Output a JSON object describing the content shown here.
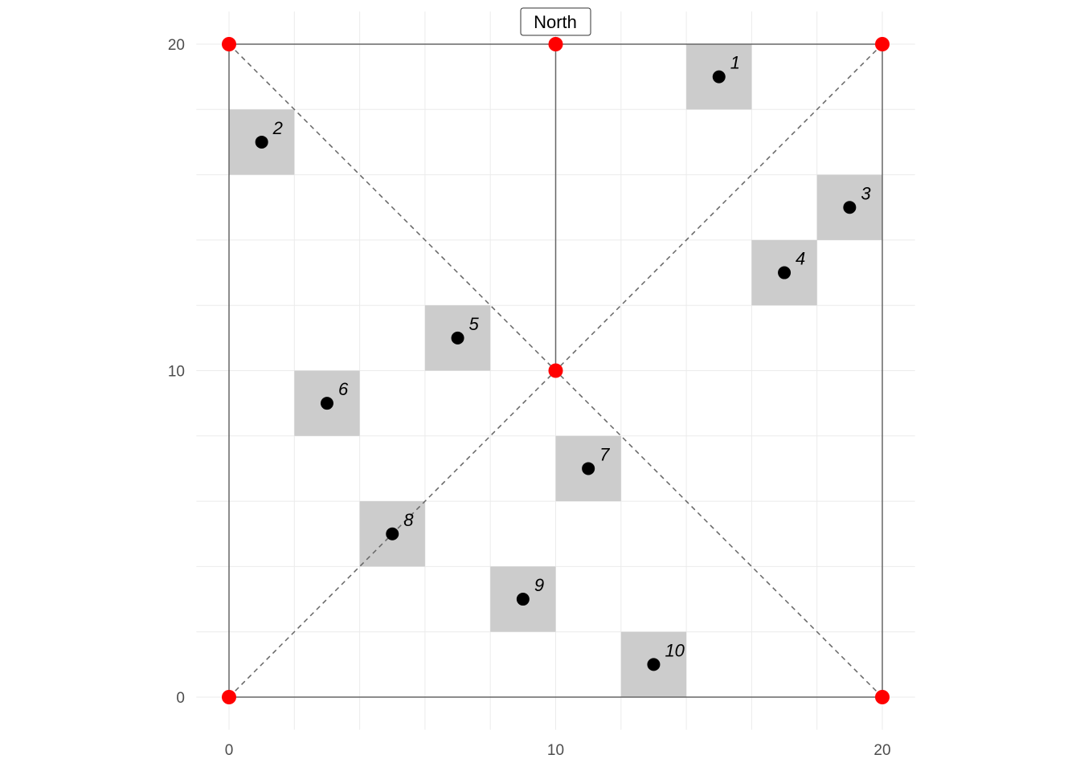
{
  "chart_data": {
    "type": "scatter",
    "title": "",
    "xlabel": "",
    "ylabel": "",
    "xlim": [
      -1,
      21
    ],
    "ylim": [
      -1,
      21
    ],
    "x_ticks": [
      0,
      10,
      20
    ],
    "y_ticks": [
      0,
      10,
      20
    ],
    "minor_grid_step": 2,
    "grid": true,
    "north_label": "North",
    "cell_size": 2,
    "points": [
      {
        "label": "1",
        "x": 15,
        "y": 19
      },
      {
        "label": "2",
        "x": 1,
        "y": 17
      },
      {
        "label": "3",
        "x": 19,
        "y": 15
      },
      {
        "label": "4",
        "x": 17,
        "y": 13
      },
      {
        "label": "5",
        "x": 7,
        "y": 11
      },
      {
        "label": "6",
        "x": 3,
        "y": 9
      },
      {
        "label": "7",
        "x": 11,
        "y": 7
      },
      {
        "label": "8",
        "x": 5,
        "y": 5
      },
      {
        "label": "9",
        "x": 9,
        "y": 3
      },
      {
        "label": "10",
        "x": 13,
        "y": 1
      }
    ],
    "reference_points": [
      {
        "x": 0,
        "y": 0
      },
      {
        "x": 0,
        "y": 20
      },
      {
        "x": 20,
        "y": 0
      },
      {
        "x": 20,
        "y": 20
      },
      {
        "x": 10,
        "y": 20
      },
      {
        "x": 10,
        "y": 10
      }
    ],
    "boundary": [
      [
        0,
        0
      ],
      [
        20,
        0
      ],
      [
        20,
        20
      ],
      [
        0,
        20
      ]
    ],
    "north_line": [
      [
        10,
        10
      ],
      [
        10,
        20
      ]
    ],
    "diagonals": [
      [
        [
          0,
          20
        ],
        [
          20,
          0
        ]
      ],
      [
        [
          0,
          0
        ],
        [
          20,
          20
        ]
      ]
    ],
    "colors": {
      "cell_fill": "#cccccc",
      "point": "#000000",
      "reference_point": "#ff0000",
      "boundary": "#666666",
      "grid": "#ebebeb"
    }
  }
}
